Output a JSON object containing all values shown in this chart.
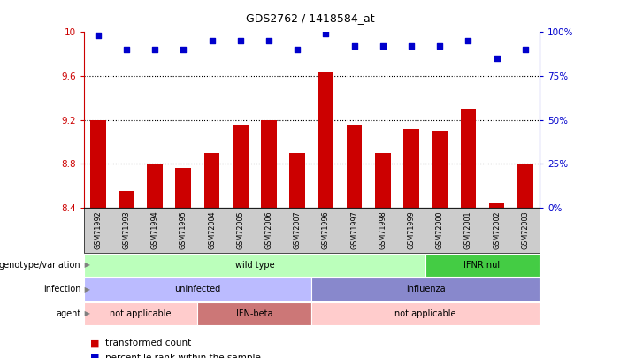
{
  "title": "GDS2762 / 1418584_at",
  "samples": [
    "GSM71992",
    "GSM71993",
    "GSM71994",
    "GSM71995",
    "GSM72004",
    "GSM72005",
    "GSM72006",
    "GSM72007",
    "GSM71996",
    "GSM71997",
    "GSM71998",
    "GSM71999",
    "GSM72000",
    "GSM72001",
    "GSM72002",
    "GSM72003"
  ],
  "bar_values": [
    9.2,
    8.55,
    8.8,
    8.76,
    8.9,
    9.16,
    9.2,
    8.9,
    9.63,
    9.16,
    8.9,
    9.12,
    9.1,
    9.3,
    8.44,
    8.8
  ],
  "dot_values": [
    98,
    90,
    90,
    90,
    95,
    95,
    95,
    90,
    99,
    92,
    92,
    92,
    92,
    95,
    85,
    90
  ],
  "bar_color": "#cc0000",
  "dot_color": "#0000cc",
  "ylim_left": [
    8.4,
    10.0
  ],
  "ylim_right": [
    0,
    100
  ],
  "yticks_left": [
    8.4,
    8.8,
    9.2,
    9.6,
    10.0
  ],
  "ytick_labels_left": [
    "8.4",
    "8.8",
    "9.2",
    "9.6",
    "10"
  ],
  "yticks_right": [
    0,
    25,
    50,
    75,
    100
  ],
  "ytick_labels_right": [
    "0%",
    "25%",
    "50%",
    "75%",
    "100%"
  ],
  "hlines": [
    8.8,
    9.2,
    9.6
  ],
  "genotype_wild": {
    "label": "wild type",
    "start": 0,
    "end": 12,
    "color": "#bbffbb"
  },
  "genotype_ifnr": {
    "label": "IFNR null",
    "start": 12,
    "end": 16,
    "color": "#44cc44"
  },
  "infection_uninfected": {
    "label": "uninfected",
    "start": 0,
    "end": 8,
    "color": "#bbbbff"
  },
  "infection_influenza": {
    "label": "influenza",
    "start": 8,
    "end": 16,
    "color": "#8888cc"
  },
  "agent_not1": {
    "label": "not applicable",
    "start": 0,
    "end": 4,
    "color": "#ffcccc"
  },
  "agent_ifnbeta": {
    "label": "IFN-beta",
    "start": 4,
    "end": 8,
    "color": "#cc7777"
  },
  "agent_not2": {
    "label": "not applicable",
    "start": 8,
    "end": 16,
    "color": "#ffcccc"
  },
  "row_labels": [
    "genotype/variation",
    "infection",
    "agent"
  ],
  "legend_bar_label": "transformed count",
  "legend_dot_label": "percentile rank within the sample",
  "background_color": "#ffffff",
  "tick_area_bg": "#cccccc"
}
